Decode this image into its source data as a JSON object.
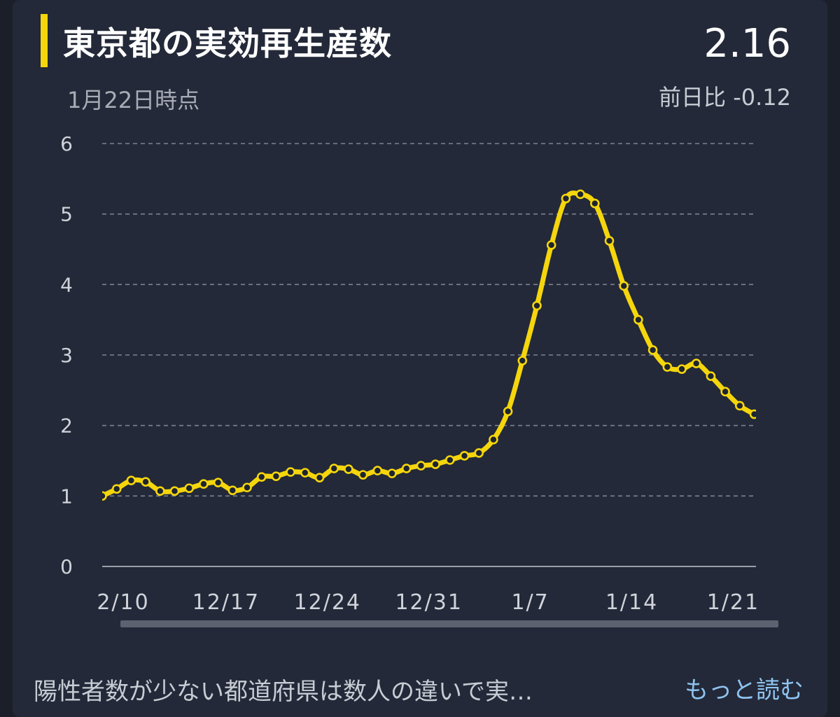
{
  "header": {
    "title": "東京都の実効再生産数",
    "current_value": "2.16",
    "as_of": "1月22日時点",
    "day_over_day": "前日比 -0.12"
  },
  "footer": {
    "description": "陽性者数が少ない都道府県は数人の違いで実…",
    "read_more": "もっと読む"
  },
  "colors": {
    "accent": "#f5d60c",
    "card_bg": "#232938",
    "link": "#8fc3f0"
  },
  "chart_data": {
    "type": "line",
    "title": "東京都の実効再生産数",
    "xlabel": "",
    "ylabel": "",
    "ylim": [
      0,
      6
    ],
    "y_ticks": [
      "0",
      "1",
      "2",
      "3",
      "4",
      "5",
      "6"
    ],
    "x_tick_labels": [
      "2/10",
      "12/17",
      "12/24",
      "12/31",
      "1/7",
      "1/14",
      "1/21"
    ],
    "grid": true,
    "series": [
      {
        "values": [
          1.0,
          1.1,
          1.22,
          1.2,
          1.07,
          1.07,
          1.11,
          1.17,
          1.19,
          1.08,
          1.12,
          1.27,
          1.28,
          1.34,
          1.33,
          1.26,
          1.39,
          1.38,
          1.3,
          1.36,
          1.32,
          1.39,
          1.43,
          1.45,
          1.51,
          1.57,
          1.61,
          1.8,
          2.2,
          2.92,
          3.7,
          4.56,
          5.22,
          5.28,
          5.15,
          4.62,
          3.98,
          3.5,
          3.07,
          2.83,
          2.8,
          2.88,
          2.7,
          2.48,
          2.28,
          2.16
        ]
      }
    ]
  }
}
